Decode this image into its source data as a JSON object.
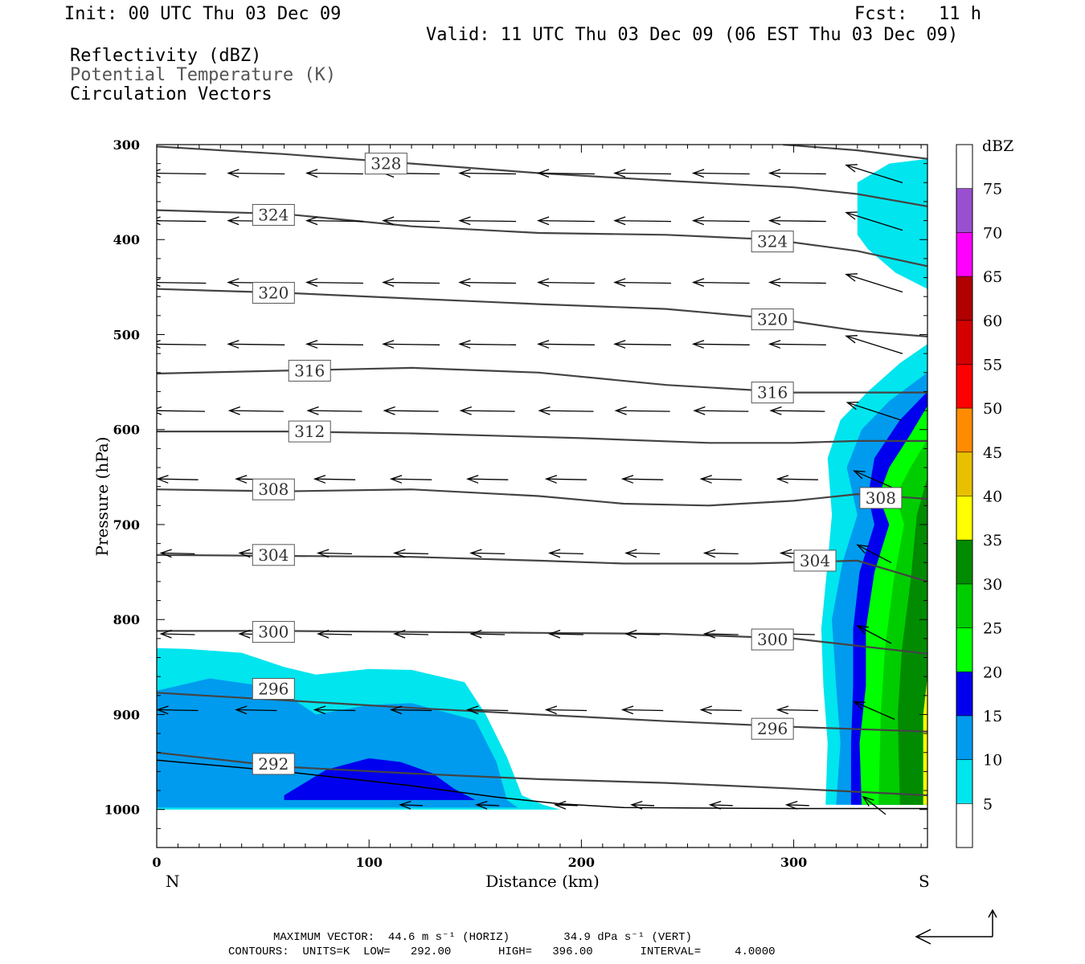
{
  "header": {
    "init": "Init: 00 UTC Thu 03 Dec 09",
    "fcst_label": "Fcst:",
    "fcst_value": "11 h",
    "valid": "Valid: 11 UTC Thu 03 Dec 09 (06 EST Thu 03 Dec 09)",
    "fields": [
      "Reflectivity (dBZ)",
      "Potential Temperature (K)",
      "Circulation Vectors"
    ]
  },
  "footer": {
    "vector_line": "MAXIMUM VECTOR:  44.6 m s⁻¹ (HORIZ)        34.9 dPa s⁻¹ (VERT)",
    "contour_line": "CONTOURS:  UNITS=K  LOW=   292.00       HIGH=   396.00       INTERVAL=     4.0000"
  },
  "colorbar": {
    "title": "dBZ",
    "levels": [
      "5",
      "10",
      "15",
      "20",
      "25",
      "30",
      "35",
      "40",
      "45",
      "50",
      "55",
      "60",
      "65",
      "70",
      "75"
    ],
    "colors": [
      "#ffffff",
      "#00e5ee",
      "#009bee",
      "#0000ee",
      "#00ff00",
      "#00cd00",
      "#008b00",
      "#ffff00",
      "#e8c000",
      "#ff8c00",
      "#ff0000",
      "#d40000",
      "#b00000",
      "#ff00ff",
      "#9a4fd0",
      "#ffffff"
    ]
  },
  "chart_data": {
    "type": "cross-section",
    "xlabel": "Distance (km)",
    "ylabel": "Pressure (hPa)",
    "xlim": [
      0,
      363
    ],
    "ylim": [
      1040,
      300
    ],
    "x_ticks": [
      "0",
      "100",
      "200",
      "300"
    ],
    "y_ticks": [
      "300",
      "400",
      "500",
      "600",
      "700",
      "800",
      "900",
      "1000"
    ],
    "x_end_labels": {
      "left": "N",
      "right": "S"
    },
    "theta_contours": [
      {
        "level": 292,
        "label": "292",
        "label_at": [
          55,
          952
        ],
        "points": [
          [
            0,
            940
          ],
          [
            60,
            955
          ],
          [
            120,
            962
          ],
          [
            180,
            968
          ],
          [
            240,
            972
          ],
          [
            300,
            978
          ],
          [
            363,
            985
          ]
        ]
      },
      {
        "level": 296,
        "label": "296",
        "label_at": [
          55,
          873
        ],
        "points": [
          [
            0,
            877
          ],
          [
            60,
            885
          ],
          [
            120,
            893
          ],
          [
            180,
            900
          ],
          [
            240,
            907
          ],
          [
            300,
            913
          ],
          [
            363,
            918
          ]
        ]
      },
      {
        "level": 300,
        "label": "300",
        "label_at": [
          55,
          813
        ],
        "points": [
          [
            0,
            812
          ],
          [
            60,
            812
          ],
          [
            120,
            813
          ],
          [
            180,
            814
          ],
          [
            240,
            815
          ],
          [
            300,
            820
          ],
          [
            363,
            836
          ]
        ]
      },
      {
        "level": 300,
        "label": "300",
        "label_at": [
          290,
          821
        ],
        "points": []
      },
      {
        "level": 296,
        "label": "296",
        "label_at": [
          290,
          915
        ],
        "points": []
      },
      {
        "level": 304,
        "label": "304",
        "label_at": [
          55,
          732
        ],
        "points": [
          [
            0,
            732
          ],
          [
            60,
            733
          ],
          [
            120,
            734
          ],
          [
            180,
            738
          ],
          [
            220,
            741
          ],
          [
            280,
            741
          ],
          [
            330,
            738
          ],
          [
            363,
            760
          ]
        ]
      },
      {
        "level": 304,
        "label": "304",
        "label_at": [
          310,
          738
        ],
        "points": []
      },
      {
        "level": 308,
        "label": "308",
        "label_at": [
          55,
          663
        ],
        "points": [
          [
            0,
            663
          ],
          [
            60,
            665
          ],
          [
            120,
            663
          ],
          [
            180,
            670
          ],
          [
            220,
            678
          ],
          [
            260,
            680
          ],
          [
            300,
            675
          ],
          [
            330,
            668
          ],
          [
            363,
            673
          ]
        ]
      },
      {
        "level": 308,
        "label": "308",
        "label_at": [
          341,
          672
        ],
        "points": []
      },
      {
        "level": 312,
        "label": "312",
        "label_at": [
          72,
          602
        ],
        "points": [
          [
            0,
            602
          ],
          [
            60,
            602
          ],
          [
            120,
            604
          ],
          [
            200,
            609
          ],
          [
            260,
            614
          ],
          [
            300,
            614
          ],
          [
            330,
            612
          ],
          [
            363,
            612
          ]
        ]
      },
      {
        "level": 316,
        "label": "316",
        "label_at": [
          72,
          538
        ],
        "points": [
          [
            0,
            541
          ],
          [
            60,
            538
          ],
          [
            120,
            535
          ],
          [
            180,
            540
          ],
          [
            240,
            553
          ],
          [
            300,
            561
          ],
          [
            363,
            561
          ]
        ]
      },
      {
        "level": 316,
        "label": "316",
        "label_at": [
          290,
          561
        ],
        "points": []
      },
      {
        "level": 320,
        "label": "320",
        "label_at": [
          55,
          456
        ],
        "points": [
          [
            0,
            452
          ],
          [
            60,
            456
          ],
          [
            120,
            462
          ],
          [
            180,
            468
          ],
          [
            240,
            473
          ],
          [
            290,
            483
          ],
          [
            330,
            496
          ],
          [
            363,
            502
          ]
        ]
      },
      {
        "level": 320,
        "label": "320",
        "label_at": [
          290,
          484
        ],
        "points": []
      },
      {
        "level": 324,
        "label": "324",
        "label_at": [
          55,
          374
        ],
        "points": [
          [
            0,
            369
          ],
          [
            60,
            373
          ],
          [
            120,
            386
          ],
          [
            180,
            393
          ],
          [
            240,
            395
          ],
          [
            290,
            400
          ],
          [
            330,
            412
          ],
          [
            363,
            428
          ]
        ]
      },
      {
        "level": 324,
        "label": "324",
        "label_at": [
          290,
          402
        ],
        "points": []
      },
      {
        "level": 328,
        "label": "328",
        "label_at": [
          108,
          320
        ],
        "points": [
          [
            0,
            302
          ],
          [
            60,
            310
          ],
          [
            120,
            320
          ],
          [
            180,
            330
          ],
          [
            240,
            338
          ],
          [
            300,
            345
          ],
          [
            330,
            352
          ],
          [
            363,
            365
          ]
        ]
      },
      {
        "level": 332,
        "label": "",
        "label_at": null,
        "points": [
          [
            295,
            300
          ],
          [
            330,
            306
          ],
          [
            363,
            315
          ]
        ]
      }
    ],
    "surface": [
      [
        0,
        948
      ],
      [
        60,
        960
      ],
      [
        120,
        975
      ],
      [
        160,
        987
      ],
      [
        190,
        994
      ],
      [
        220,
        998
      ],
      [
        300,
        999
      ],
      [
        363,
        999
      ]
    ],
    "reflectivity_regions": [
      {
        "dbz": 5,
        "points": [
          [
            0,
            830
          ],
          [
            15,
            831
          ],
          [
            40,
            835
          ],
          [
            60,
            850
          ],
          [
            75,
            858
          ],
          [
            100,
            852
          ],
          [
            120,
            853
          ],
          [
            145,
            866
          ],
          [
            155,
            900
          ],
          [
            165,
            945
          ],
          [
            172,
            985
          ],
          [
            182,
            995
          ],
          [
            190,
            1000
          ],
          [
            0,
            1000
          ]
        ]
      },
      {
        "dbz": 10,
        "points": [
          [
            0,
            875
          ],
          [
            25,
            862
          ],
          [
            50,
            870
          ],
          [
            65,
            885
          ],
          [
            75,
            900
          ],
          [
            100,
            890
          ],
          [
            120,
            888
          ],
          [
            150,
            906
          ],
          [
            160,
            950
          ],
          [
            165,
            990
          ],
          [
            170,
            998
          ],
          [
            0,
            998
          ]
        ]
      },
      {
        "dbz": 15,
        "points": [
          [
            60,
            985
          ],
          [
            80,
            958
          ],
          [
            100,
            946
          ],
          [
            115,
            950
          ],
          [
            130,
            962
          ],
          [
            140,
            978
          ],
          [
            150,
            990
          ],
          [
            60,
            990
          ]
        ]
      },
      {
        "dbz": 5,
        "points": [
          [
            330,
            340
          ],
          [
            345,
            320
          ],
          [
            363,
            315
          ],
          [
            363,
            452
          ],
          [
            348,
            435
          ],
          [
            335,
            410
          ],
          [
            330,
            395
          ]
        ]
      },
      {
        "dbz": 5,
        "points": [
          [
            363,
            510
          ],
          [
            350,
            530
          ],
          [
            335,
            560
          ],
          [
            322,
            590
          ],
          [
            316,
            630
          ],
          [
            318,
            690
          ],
          [
            316,
            740
          ],
          [
            313,
            810
          ],
          [
            314,
            870
          ],
          [
            316,
            930
          ],
          [
            315,
            995
          ],
          [
            363,
            995
          ]
        ]
      },
      {
        "dbz": 10,
        "points": [
          [
            363,
            540
          ],
          [
            345,
            570
          ],
          [
            332,
            600
          ],
          [
            325,
            640
          ],
          [
            330,
            690
          ],
          [
            323,
            740
          ],
          [
            318,
            800
          ],
          [
            320,
            870
          ],
          [
            322,
            930
          ],
          [
            320,
            995
          ],
          [
            363,
            995
          ]
        ]
      },
      {
        "dbz": 15,
        "points": [
          [
            363,
            560
          ],
          [
            350,
            590
          ],
          [
            338,
            630
          ],
          [
            335,
            670
          ],
          [
            338,
            700
          ],
          [
            331,
            750
          ],
          [
            328,
            810
          ],
          [
            328,
            870
          ],
          [
            327,
            930
          ],
          [
            327,
            995
          ],
          [
            363,
            995
          ]
        ]
      },
      {
        "dbz": 20,
        "points": [
          [
            363,
            575
          ],
          [
            355,
            605
          ],
          [
            345,
            640
          ],
          [
            340,
            670
          ],
          [
            345,
            700
          ],
          [
            338,
            750
          ],
          [
            334,
            810
          ],
          [
            334,
            870
          ],
          [
            331,
            930
          ],
          [
            332,
            995
          ],
          [
            363,
            995
          ]
        ]
      },
      {
        "dbz": 25,
        "points": [
          [
            363,
            610
          ],
          [
            355,
            640
          ],
          [
            348,
            670
          ],
          [
            352,
            700
          ],
          [
            347,
            760
          ],
          [
            343,
            830
          ],
          [
            341,
            900
          ],
          [
            340,
            995
          ],
          [
            363,
            995
          ]
        ]
      },
      {
        "dbz": 30,
        "points": [
          [
            363,
            650
          ],
          [
            358,
            690
          ],
          [
            355,
            760
          ],
          [
            351,
            830
          ],
          [
            349,
            900
          ],
          [
            350,
            995
          ],
          [
            363,
            995
          ]
        ]
      },
      {
        "dbz": 35,
        "points": [
          [
            363,
            860
          ],
          [
            361,
            900
          ],
          [
            361,
            995
          ],
          [
            363,
            995
          ]
        ]
      }
    ],
    "vectors_note": "circulation vectors: arrows pointing north (leftward), tilted upward near the southern end",
    "vectors": [
      {
        "p": 330,
        "xs": [
          10,
          47,
          84,
          120,
          156,
          193,
          229,
          266,
          302,
          338
        ],
        "u": -25,
        "w": 0
      },
      {
        "p": 380,
        "xs": [
          10,
          47,
          84,
          120,
          156,
          193,
          229,
          266,
          302,
          338
        ],
        "u": -25,
        "w": 0
      },
      {
        "p": 445,
        "xs": [
          10,
          47,
          84,
          120,
          156,
          193,
          229,
          266,
          302,
          338
        ],
        "u": -25,
        "w": 0
      },
      {
        "p": 510,
        "xs": [
          10,
          47,
          84,
          120,
          156,
          193,
          229,
          266,
          302,
          338
        ],
        "u": -25,
        "w": 0
      },
      {
        "p": 580,
        "xs": [
          10,
          47,
          84,
          120,
          156,
          193,
          229,
          266,
          302,
          338
        ],
        "u": -24,
        "w": 0
      },
      {
        "p": 652,
        "xs": [
          10,
          47,
          84,
          120,
          156,
          193,
          229,
          266,
          302,
          338
        ],
        "u": -18,
        "w": 0
      },
      {
        "p": 730,
        "xs": [
          10,
          47,
          84,
          120,
          156,
          193,
          229,
          266,
          302,
          338
        ],
        "u": -15,
        "w": 0
      },
      {
        "p": 815,
        "xs": [
          10,
          47,
          84,
          120,
          156,
          193,
          229,
          266,
          302,
          338
        ],
        "u": -15,
        "w": 0
      },
      {
        "p": 895,
        "xs": [
          10,
          47,
          84,
          120,
          156,
          193,
          229,
          266,
          302,
          338
        ],
        "u": -18,
        "w": 0
      },
      {
        "p": 995,
        "xs": [
          120,
          156,
          193,
          229,
          266,
          302,
          338
        ],
        "u": -10,
        "w": 0
      }
    ]
  }
}
